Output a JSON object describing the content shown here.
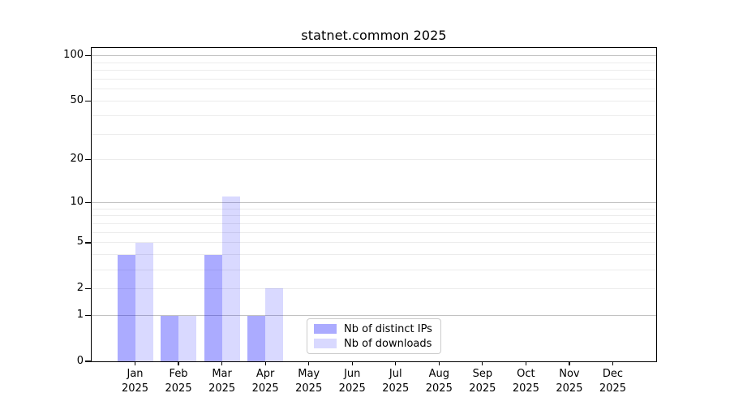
{
  "chart_data": {
    "type": "bar",
    "title": "statnet.common 2025",
    "categories": [
      "Jan",
      "Feb",
      "Mar",
      "Apr",
      "May",
      "Jun",
      "Jul",
      "Aug",
      "Sep",
      "Oct",
      "Nov",
      "Dec"
    ],
    "x_year_label": "2025",
    "series": [
      {
        "name": "Nb of distinct IPs",
        "color": "rgba(0,0,255,0.33)",
        "values": [
          4,
          1,
          4,
          1,
          0,
          0,
          0,
          0,
          0,
          0,
          0,
          0
        ]
      },
      {
        "name": "Nb of downloads",
        "color": "rgba(0,0,255,0.15)",
        "values": [
          5,
          1,
          11,
          2,
          0,
          0,
          0,
          0,
          0,
          0,
          0,
          0
        ]
      }
    ],
    "y_scale": "log1p",
    "y_ticks": [
      0,
      1,
      2,
      5,
      10,
      20,
      50,
      100
    ],
    "ylim": [
      0,
      113
    ],
    "grid_major": [
      1,
      10,
      100
    ],
    "grid_minor": [
      2,
      3,
      4,
      5,
      6,
      7,
      8,
      9,
      20,
      30,
      40,
      50,
      60,
      70,
      80,
      90
    ],
    "legend_position": "inside-bottom-center",
    "grid_on": true,
    "colors": {
      "bar_distinct_ips": "rgba(0,0,255,0.33)",
      "bar_downloads": "rgba(0,0,255,0.15)",
      "grid_major": "#c2c2c2",
      "grid_minor": "#ececec",
      "spine": "#000000",
      "text": "#000000"
    }
  }
}
